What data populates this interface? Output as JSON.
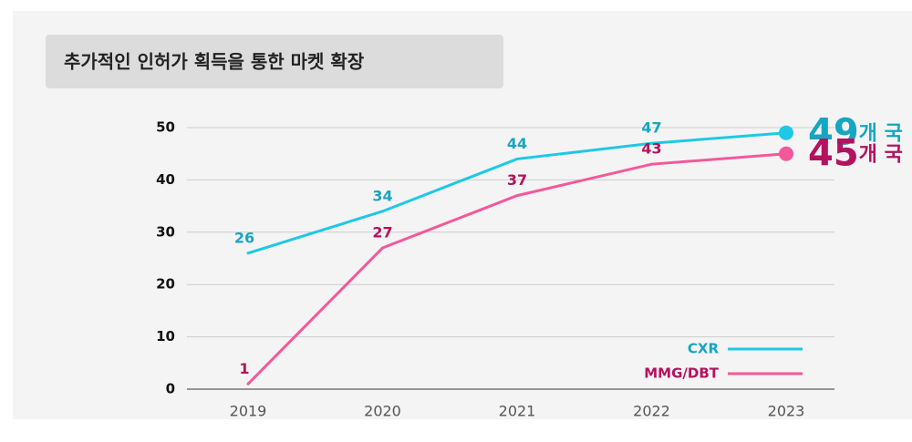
{
  "chart_data": {
    "type": "line",
    "title": "추가적인 인허가 획득을 통한 마켓 확장",
    "categories": [
      "2019",
      "2020",
      "2021",
      "2022",
      "2023"
    ],
    "series": [
      {
        "name": "CXR",
        "color": "#1ec8e6",
        "label_color": "#16a6c2",
        "values": [
          26,
          34,
          44,
          47,
          49
        ],
        "end_label_suffix": "개 국"
      },
      {
        "name": "MMG/DBT",
        "color": "#f4589a",
        "label_color": "#b3125e",
        "values": [
          1,
          27,
          37,
          43,
          45
        ],
        "end_label_suffix": "개 국"
      }
    ],
    "ylim": [
      0,
      50
    ],
    "yticks": [
      0,
      10,
      20,
      30,
      40,
      50
    ],
    "grid": true,
    "legend": "lower right"
  }
}
